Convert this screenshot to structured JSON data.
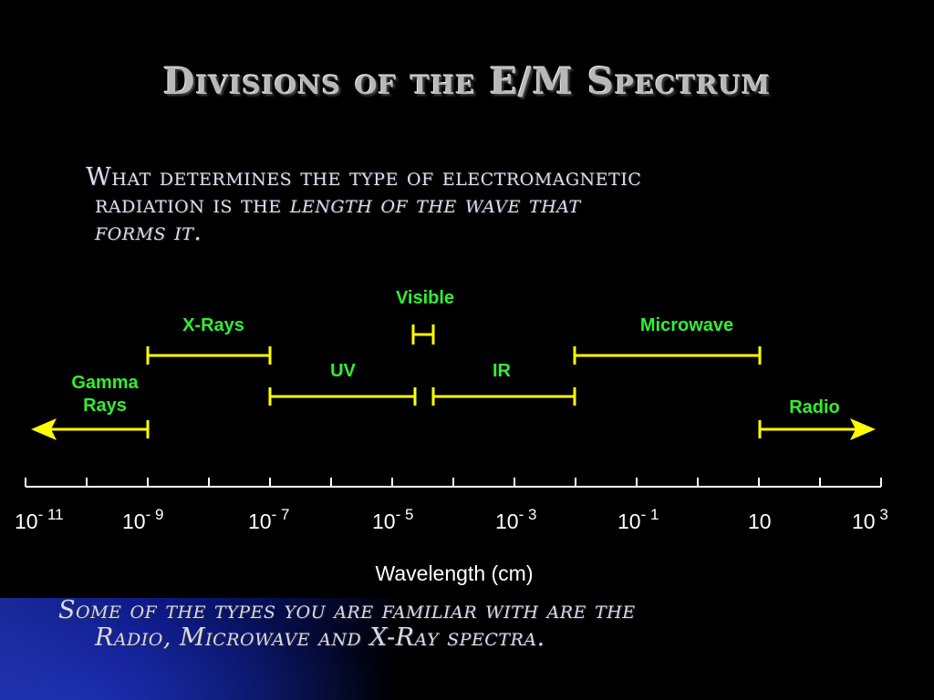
{
  "slide": {
    "title": "Divisions of the E/M Spectrum",
    "intro_part1": "What determines the type of electromagnetic",
    "intro_part2": "radiation is the ",
    "intro_emphasis": "length of the wave that",
    "intro_emphasis2": "forms it.",
    "footer_line1": "Some of the types you are familiar with are the",
    "footer_line2": "Radio, Microwave and X-Ray spectra."
  },
  "diagram": {
    "band_labels": {
      "visible": "Visible",
      "xrays": "X-Rays",
      "microwave": "Microwave",
      "uv": "UV",
      "ir": "IR",
      "gamma_line1": "Gamma",
      "gamma_line2": "Rays",
      "radio": "Radio"
    },
    "axis_label": "Wavelength (cm)",
    "tick_labels": [
      {
        "base": "10",
        "exp": "- 11"
      },
      {
        "base": "10",
        "exp": "- 9"
      },
      {
        "base": "10",
        "exp": "- 7"
      },
      {
        "base": "10",
        "exp": "- 5"
      },
      {
        "base": "10",
        "exp": "- 3"
      },
      {
        "base": "10",
        "exp": "- 1"
      },
      {
        "base": "10",
        "exp": ""
      },
      {
        "base": "10",
        "exp": " 3"
      }
    ],
    "colors": {
      "band": "#ffff00",
      "label": "#33ee33",
      "axis": "#ffffff",
      "title": "#b8b8b8"
    }
  }
}
